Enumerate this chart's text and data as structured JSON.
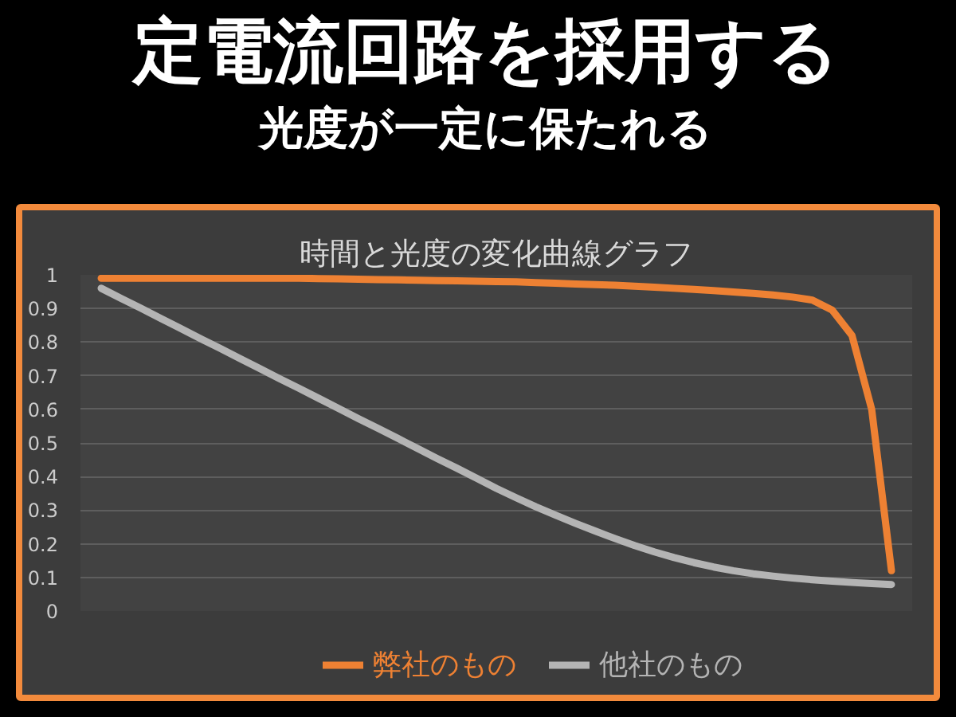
{
  "chart_data": {
    "type": "line",
    "title": "時間と光度の変化曲線グラフ",
    "annotations": [
      "定電流回路を採用する",
      "光度が一定に保たれる"
    ],
    "categories": [
      null,
      null,
      null,
      null,
      null,
      null,
      null,
      null,
      null,
      null,
      null,
      null,
      null,
      null,
      null,
      null,
      null,
      null,
      null,
      null,
      null,
      null,
      null,
      null,
      null,
      null,
      null,
      null,
      null,
      null,
      null,
      null,
      null,
      null,
      null,
      null,
      null,
      null,
      null,
      null,
      null
    ],
    "series": [
      {
        "name": "弊社のもの",
        "color": "#ee8133",
        "values": [
          0.99,
          0.99,
          0.99,
          0.99,
          0.99,
          0.99,
          0.99,
          0.99,
          0.99,
          0.99,
          0.99,
          0.989,
          0.988,
          0.987,
          0.986,
          0.985,
          0.984,
          0.983,
          0.982,
          0.981,
          0.98,
          0.979,
          0.977,
          0.975,
          0.973,
          0.971,
          0.969,
          0.966,
          0.963,
          0.96,
          0.957,
          0.953,
          0.949,
          0.945,
          0.94,
          0.934,
          0.925,
          0.895,
          0.82,
          0.6,
          0.12
        ]
      },
      {
        "name": "他社のもの",
        "color": "#b4b4b4",
        "values": [
          0.96,
          0.93,
          0.901,
          0.871,
          0.841,
          0.811,
          0.782,
          0.752,
          0.722,
          0.692,
          0.663,
          0.633,
          0.603,
          0.573,
          0.544,
          0.514,
          0.484,
          0.454,
          0.425,
          0.395,
          0.365,
          0.337,
          0.31,
          0.285,
          0.261,
          0.238,
          0.216,
          0.195,
          0.176,
          0.159,
          0.144,
          0.131,
          0.12,
          0.111,
          0.104,
          0.098,
          0.093,
          0.089,
          0.085,
          0.082,
          0.079
        ]
      }
    ],
    "ylim": [
      0,
      1
    ],
    "yticks": [
      0,
      0.1,
      0.2,
      0.3,
      0.4,
      0.5,
      0.6,
      0.7,
      0.8,
      0.9,
      1
    ],
    "grid": "y",
    "legend": "bottom",
    "tick_labels": "y",
    "line_style": "solid"
  }
}
